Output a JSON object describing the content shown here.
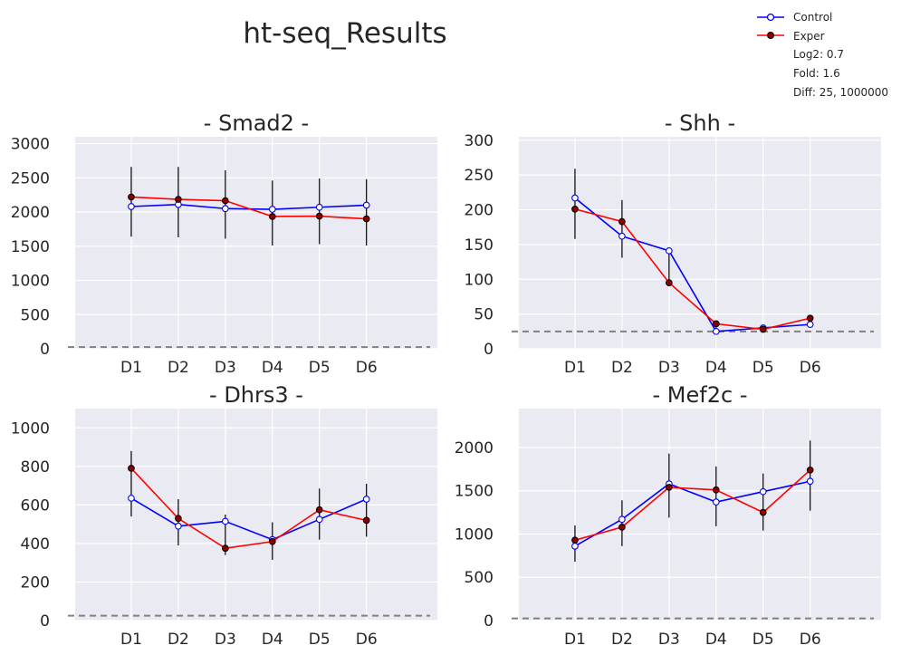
{
  "title": "ht-seq_Results",
  "legend": {
    "entries": [
      {
        "label": "Control",
        "color": "#0000ff",
        "marker_fill": "#ffffff"
      },
      {
        "label": "Exper",
        "color": "#ff0000",
        "marker_fill": "#8b0000"
      }
    ],
    "notes": [
      "Log2: 0.7",
      "Fold: 1.6",
      "Diff: 25, 1000000"
    ],
    "placement": "top-right"
  },
  "chart_data": [
    {
      "type": "line",
      "title": "- Smad2 -",
      "categories": [
        "D1",
        "D2",
        "D3",
        "D4",
        "D5",
        "D6"
      ],
      "ylim": [
        0,
        3100
      ],
      "yticks": [
        0,
        500,
        1000,
        1500,
        2000,
        2500,
        3000
      ],
      "threshold": 25,
      "grid": true,
      "series": [
        {
          "name": "Control",
          "values": [
            2080,
            2110,
            2050,
            2040,
            2070,
            2100
          ]
        },
        {
          "name": "Exper",
          "values": [
            2220,
            2185,
            2165,
            1935,
            1940,
            1900
          ]
        }
      ],
      "error_bars": [
        [
          1640,
          2660
        ],
        [
          1630,
          2660
        ],
        [
          1610,
          2610
        ],
        [
          1510,
          2460
        ],
        [
          1530,
          2490
        ],
        [
          1510,
          2480
        ]
      ]
    },
    {
      "type": "line",
      "title": "- Shh -",
      "categories": [
        "D1",
        "D2",
        "D3",
        "D4",
        "D5",
        "D6"
      ],
      "ylim": [
        0,
        305
      ],
      "yticks": [
        0,
        50,
        100,
        150,
        200,
        250,
        300
      ],
      "threshold": 25,
      "grid": true,
      "series": [
        {
          "name": "Control",
          "values": [
            217,
            162,
            141,
            25,
            30,
            35
          ]
        },
        {
          "name": "Exper",
          "values": [
            201,
            183,
            95,
            36,
            28,
            44
          ]
        }
      ],
      "error_bars": [
        [
          158,
          259
        ],
        [
          131,
          214
        ],
        [
          94,
          142
        ],
        [
          24,
          38
        ],
        [
          25,
          33
        ],
        [
          33,
          45
        ]
      ]
    },
    {
      "type": "line",
      "title": "- Dhrs3 -",
      "categories": [
        "D1",
        "D2",
        "D3",
        "D4",
        "D5",
        "D6"
      ],
      "ylim": [
        0,
        1100
      ],
      "yticks": [
        0,
        200,
        400,
        600,
        800,
        1000
      ],
      "threshold": 25,
      "grid": true,
      "series": [
        {
          "name": "Control",
          "values": [
            635,
            490,
            515,
            420,
            525,
            630
          ]
        },
        {
          "name": "Exper",
          "values": [
            790,
            530,
            375,
            410,
            575,
            520
          ]
        }
      ],
      "error_bars": [
        [
          540,
          880
        ],
        [
          390,
          630
        ],
        [
          340,
          550
        ],
        [
          315,
          510
        ],
        [
          420,
          685
        ],
        [
          435,
          710
        ]
      ]
    },
    {
      "type": "line",
      "title": "- Mef2c -",
      "categories": [
        "D1",
        "D2",
        "D3",
        "D4",
        "D5",
        "D6"
      ],
      "ylim": [
        0,
        2450
      ],
      "yticks": [
        0,
        500,
        1000,
        1500,
        2000
      ],
      "threshold": 25,
      "grid": true,
      "series": [
        {
          "name": "Control",
          "values": [
            860,
            1170,
            1580,
            1370,
            1490,
            1610
          ]
        },
        {
          "name": "Exper",
          "values": [
            930,
            1080,
            1540,
            1510,
            1250,
            1740
          ]
        }
      ],
      "error_bars": [
        [
          680,
          1100
        ],
        [
          860,
          1390
        ],
        [
          1190,
          1930
        ],
        [
          1090,
          1780
        ],
        [
          1040,
          1700
        ],
        [
          1270,
          2080
        ]
      ]
    }
  ]
}
